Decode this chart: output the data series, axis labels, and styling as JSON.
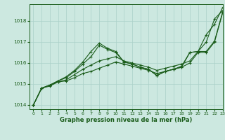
{
  "title": "Graphe pression niveau de la mer (hPa)",
  "bg_color": "#cce8e0",
  "line_color": "#1a5c1a",
  "grid_color": "#aad0c8",
  "xlim": [
    -0.5,
    23
  ],
  "ylim": [
    1013.8,
    1018.8
  ],
  "yticks": [
    1014,
    1015,
    1016,
    1017,
    1018
  ],
  "xticks": [
    0,
    1,
    2,
    3,
    4,
    5,
    6,
    7,
    8,
    9,
    10,
    11,
    12,
    13,
    14,
    15,
    16,
    17,
    18,
    19,
    20,
    21,
    22,
    23
  ],
  "series": [
    [
      1014.0,
      1014.8,
      1014.9,
      1015.1,
      1015.15,
      1015.3,
      1015.5,
      1015.6,
      1015.75,
      1015.9,
      1016.05,
      1015.95,
      1015.85,
      1015.75,
      1015.65,
      1015.5,
      1015.6,
      1015.7,
      1015.8,
      1016.0,
      1016.5,
      1016.5,
      1017.0,
      1018.4
    ],
    [
      1014.0,
      1014.8,
      1014.95,
      1015.1,
      1015.2,
      1015.45,
      1015.7,
      1015.9,
      1016.1,
      1016.2,
      1016.3,
      1016.1,
      1016.0,
      1015.9,
      1015.8,
      1015.65,
      1015.75,
      1015.85,
      1015.95,
      1016.1,
      1016.55,
      1016.55,
      1017.05,
      1018.45
    ],
    [
      1014.0,
      1014.8,
      1014.95,
      1015.15,
      1015.3,
      1015.6,
      1015.95,
      1016.3,
      1016.85,
      1016.65,
      1016.5,
      1016.05,
      1015.95,
      1015.8,
      1015.7,
      1015.4,
      1015.6,
      1015.7,
      1015.8,
      1016.5,
      1016.55,
      1017.0,
      1018.1,
      1018.5
    ],
    [
      1014.0,
      1014.8,
      1014.95,
      1015.15,
      1015.35,
      1015.65,
      1016.05,
      1016.55,
      1016.95,
      1016.7,
      1016.55,
      1016.05,
      1015.95,
      1015.8,
      1015.7,
      1015.4,
      1015.6,
      1015.7,
      1015.85,
      1016.5,
      1016.55,
      1017.35,
      1017.85,
      1018.65
    ]
  ]
}
